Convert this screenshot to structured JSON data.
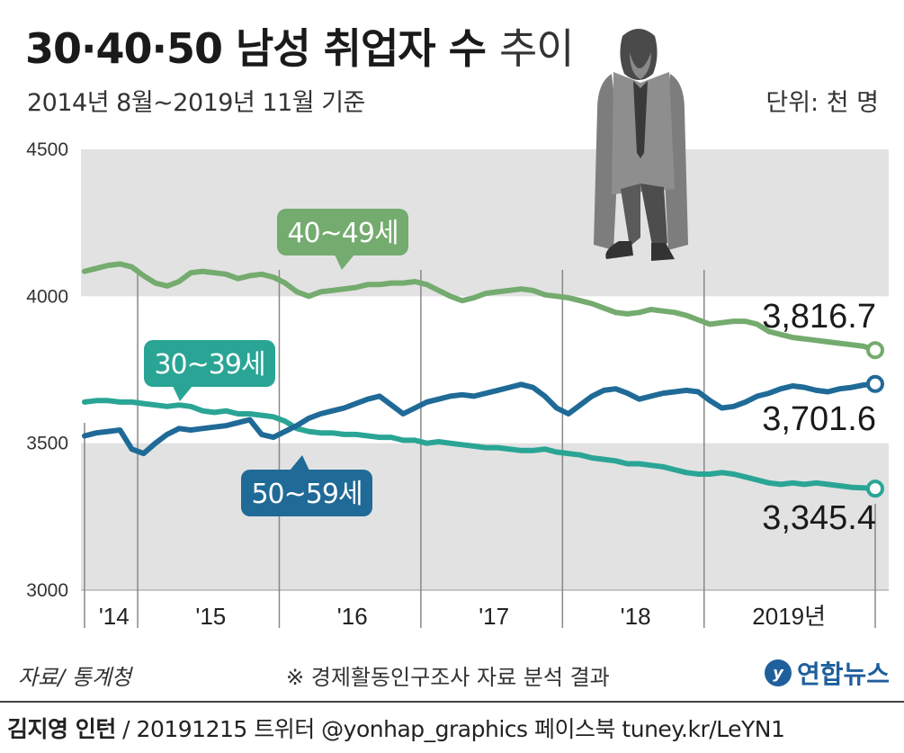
{
  "header": {
    "title_main": "30·40·50 남성 취업자 수",
    "title_suffix": "추이",
    "subtitle": "2014년 8월~2019년 11월 기준",
    "unit": "단위: 천 명"
  },
  "footer": {
    "source": "자료/ 통계청",
    "note": "※ 경제활동인구조사 자료 분석 결과",
    "logo_text": "연합뉴스",
    "credit_name": "김지영 인턴",
    "credit_rest": " / 20191215  트위터 @yonhap_graphics  페이스북 tuney.kr/LeYN1"
  },
  "colors": {
    "band": "#e2e2e2",
    "s40": "#74ab6e",
    "s30": "#2aa595",
    "s50": "#1f6a97",
    "year_line": "#888888"
  },
  "chart_data": {
    "type": "line",
    "title": "30·40·50 남성 취업자 수 추이",
    "ylabel": "",
    "ylim": [
      3000,
      4500
    ],
    "yticks": [
      "3000",
      "3500",
      "4000",
      "4500"
    ],
    "x_start": "2014-08",
    "x_end": "2019-11",
    "x_year_labels": [
      "'14",
      "'15",
      "'16",
      "'17",
      "'18",
      "2019년"
    ],
    "grid": "alternating horizontal bands",
    "series": [
      {
        "name": "40~49세",
        "color_key": "s40",
        "end_label": "3,816.7",
        "values": [
          4085,
          4095,
          4105,
          4110,
          4100,
          4070,
          4045,
          4035,
          4050,
          4080,
          4085,
          4080,
          4075,
          4060,
          4070,
          4075,
          4065,
          4045,
          4015,
          4000,
          4015,
          4020,
          4025,
          4030,
          4040,
          4040,
          4045,
          4045,
          4050,
          4040,
          4020,
          4000,
          3985,
          3995,
          4010,
          4015,
          4020,
          4025,
          4020,
          4005,
          4000,
          3995,
          3985,
          3975,
          3960,
          3945,
          3940,
          3945,
          3955,
          3950,
          3945,
          3935,
          3920,
          3905,
          3910,
          3915,
          3915,
          3905,
          3880,
          3870,
          3860,
          3855,
          3850,
          3845,
          3840,
          3835,
          3830,
          3816.7
        ]
      },
      {
        "name": "30~39세",
        "color_key": "s30",
        "end_label": "3,345.4",
        "values": [
          3640,
          3645,
          3645,
          3640,
          3640,
          3635,
          3630,
          3625,
          3630,
          3625,
          3610,
          3605,
          3610,
          3600,
          3600,
          3595,
          3590,
          3575,
          3550,
          3540,
          3535,
          3535,
          3530,
          3530,
          3525,
          3520,
          3520,
          3510,
          3510,
          3500,
          3505,
          3500,
          3495,
          3490,
          3485,
          3485,
          3480,
          3475,
          3475,
          3480,
          3470,
          3465,
          3460,
          3450,
          3445,
          3440,
          3430,
          3430,
          3425,
          3420,
          3410,
          3400,
          3395,
          3395,
          3400,
          3395,
          3385,
          3375,
          3365,
          3360,
          3365,
          3360,
          3365,
          3360,
          3355,
          3350,
          3348,
          3345.4
        ]
      },
      {
        "name": "50~59세",
        "color_key": "s50",
        "end_label": "3,701.6",
        "values": [
          3525,
          3535,
          3540,
          3545,
          3480,
          3465,
          3500,
          3530,
          3550,
          3545,
          3550,
          3555,
          3560,
          3570,
          3580,
          3530,
          3520,
          3540,
          3560,
          3585,
          3600,
          3610,
          3620,
          3635,
          3650,
          3660,
          3630,
          3600,
          3620,
          3640,
          3650,
          3660,
          3665,
          3660,
          3670,
          3680,
          3690,
          3700,
          3690,
          3660,
          3620,
          3600,
          3630,
          3660,
          3680,
          3685,
          3670,
          3650,
          3660,
          3670,
          3675,
          3680,
          3675,
          3645,
          3620,
          3625,
          3640,
          3660,
          3670,
          3685,
          3695,
          3690,
          3680,
          3675,
          3685,
          3690,
          3698,
          3701.6
        ]
      }
    ]
  }
}
